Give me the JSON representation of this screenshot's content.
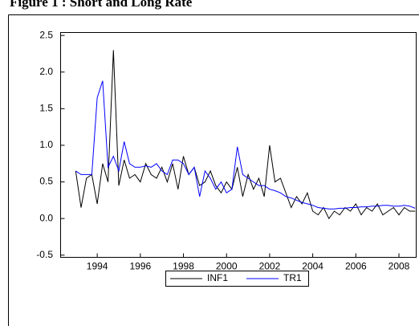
{
  "chart_data": {
    "type": "line",
    "title": "Figure 1 : Short and Long Rate",
    "x": [
      1993.0,
      1993.25,
      1993.5,
      1993.75,
      1994.0,
      1994.25,
      1994.5,
      1994.75,
      1995.0,
      1995.25,
      1995.5,
      1995.75,
      1996.0,
      1996.25,
      1996.5,
      1996.75,
      1997.0,
      1997.25,
      1997.5,
      1997.75,
      1998.0,
      1998.25,
      1998.5,
      1998.75,
      1999.0,
      1999.25,
      1999.5,
      1999.75,
      2000.0,
      2000.25,
      2000.5,
      2000.75,
      2001.0,
      2001.25,
      2001.5,
      2001.75,
      2002.0,
      2002.25,
      2002.5,
      2002.75,
      2003.0,
      2003.25,
      2003.5,
      2003.75,
      2004.0,
      2004.25,
      2004.5,
      2004.75,
      2005.0,
      2005.25,
      2005.5,
      2005.75,
      2006.0,
      2006.25,
      2006.5,
      2006.75,
      2007.0,
      2007.25,
      2007.5,
      2007.75,
      2008.0,
      2008.25,
      2008.5,
      2008.75
    ],
    "series": [
      {
        "name": "INF1",
        "color": "#000000",
        "values": [
          0.65,
          0.15,
          0.55,
          0.6,
          0.2,
          0.75,
          0.5,
          2.3,
          0.45,
          0.8,
          0.55,
          0.6,
          0.5,
          0.75,
          0.6,
          0.55,
          0.7,
          0.5,
          0.75,
          0.4,
          0.85,
          0.6,
          0.7,
          0.45,
          0.5,
          0.65,
          0.45,
          0.35,
          0.5,
          0.4,
          0.7,
          0.3,
          0.6,
          0.4,
          0.55,
          0.3,
          1.0,
          0.5,
          0.55,
          0.35,
          0.15,
          0.3,
          0.2,
          0.35,
          0.1,
          0.05,
          0.15,
          0.0,
          0.1,
          0.05,
          0.15,
          0.1,
          0.2,
          0.05,
          0.15,
          0.1,
          0.2,
          0.05,
          0.1,
          0.15,
          0.05,
          0.15,
          0.1,
          0.1
        ]
      },
      {
        "name": "TR1",
        "color": "#0000ff",
        "values": [
          0.65,
          0.6,
          0.6,
          0.6,
          1.65,
          1.88,
          0.7,
          0.85,
          0.65,
          1.05,
          0.75,
          0.7,
          0.7,
          0.72,
          0.7,
          0.75,
          0.65,
          0.6,
          0.8,
          0.8,
          0.75,
          0.6,
          0.7,
          0.3,
          0.65,
          0.55,
          0.4,
          0.5,
          0.35,
          0.4,
          0.98,
          0.6,
          0.55,
          0.5,
          0.45,
          0.45,
          0.4,
          0.38,
          0.35,
          0.3,
          0.28,
          0.25,
          0.22,
          0.2,
          0.18,
          0.15,
          0.14,
          0.13,
          0.13,
          0.14,
          0.14,
          0.15,
          0.15,
          0.16,
          0.16,
          0.17,
          0.17,
          0.18,
          0.18,
          0.17,
          0.17,
          0.18,
          0.17,
          0.14
        ]
      }
    ],
    "xlim": [
      1992.3,
      2008.8
    ],
    "ylim": [
      -0.53,
      2.54
    ],
    "xticks": [
      1994,
      1996,
      1998,
      2000,
      2002,
      2004,
      2006,
      2008
    ],
    "yticks": [
      -0.5,
      {
        "value": 0,
        "label": "0.0"
      },
      0.5,
      {
        "value": 1,
        "label": "1.0"
      },
      1.5,
      {
        "value": 2,
        "label": "2.0"
      },
      2.5
    ]
  }
}
